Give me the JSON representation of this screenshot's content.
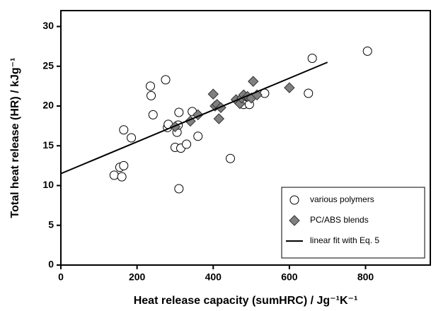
{
  "chart_data": {
    "type": "scatter",
    "xlabel": "Heat release capacity (sumHRC)  /  Jg⁻¹K⁻¹",
    "ylabel": "Total heat release (HR)  /  kJg⁻¹",
    "xlim": [
      0,
      970
    ],
    "xticks": [
      0,
      200,
      400,
      600,
      800
    ],
    "ylim": [
      0,
      32
    ],
    "yticks": [
      0,
      5,
      10,
      15,
      20,
      25,
      30
    ],
    "legend": "lower right",
    "series": [
      {
        "name": "various polymers",
        "marker": "circle",
        "color": "#ffffff",
        "x": [
          140,
          155,
          160,
          165,
          165,
          185,
          235,
          237,
          242,
          275,
          280,
          282,
          300,
          305,
          308,
          310,
          310,
          315,
          330,
          345,
          360,
          445,
          475,
          480,
          495,
          535,
          650,
          660,
          805
        ],
        "y": [
          11.3,
          12.3,
          11.1,
          12.5,
          17.0,
          16.0,
          22.5,
          21.3,
          18.9,
          23.3,
          17.3,
          17.7,
          14.8,
          16.7,
          17.6,
          19.2,
          9.6,
          14.7,
          15.2,
          19.3,
          16.2,
          13.4,
          20.5,
          20.2,
          20.2,
          21.6,
          21.6,
          26.0,
          26.9
        ]
      },
      {
        "name": "PC/ABS blends",
        "marker": "diamond",
        "color": "#808080",
        "x": [
          300,
          340,
          360,
          400,
          405,
          410,
          415,
          420,
          460,
          470,
          475,
          480,
          490,
          500,
          505,
          515,
          600
        ],
        "y": [
          17.4,
          18.1,
          18.9,
          21.5,
          20.0,
          20.2,
          18.4,
          19.8,
          20.8,
          20.3,
          21.0,
          21.4,
          21.2,
          21.0,
          23.1,
          21.4,
          22.3
        ]
      },
      {
        "name": "linear fit with Eq. 5",
        "marker": "line",
        "color": "#000000",
        "x": [
          0,
          700
        ],
        "y": [
          11.5,
          25.5
        ]
      }
    ]
  }
}
